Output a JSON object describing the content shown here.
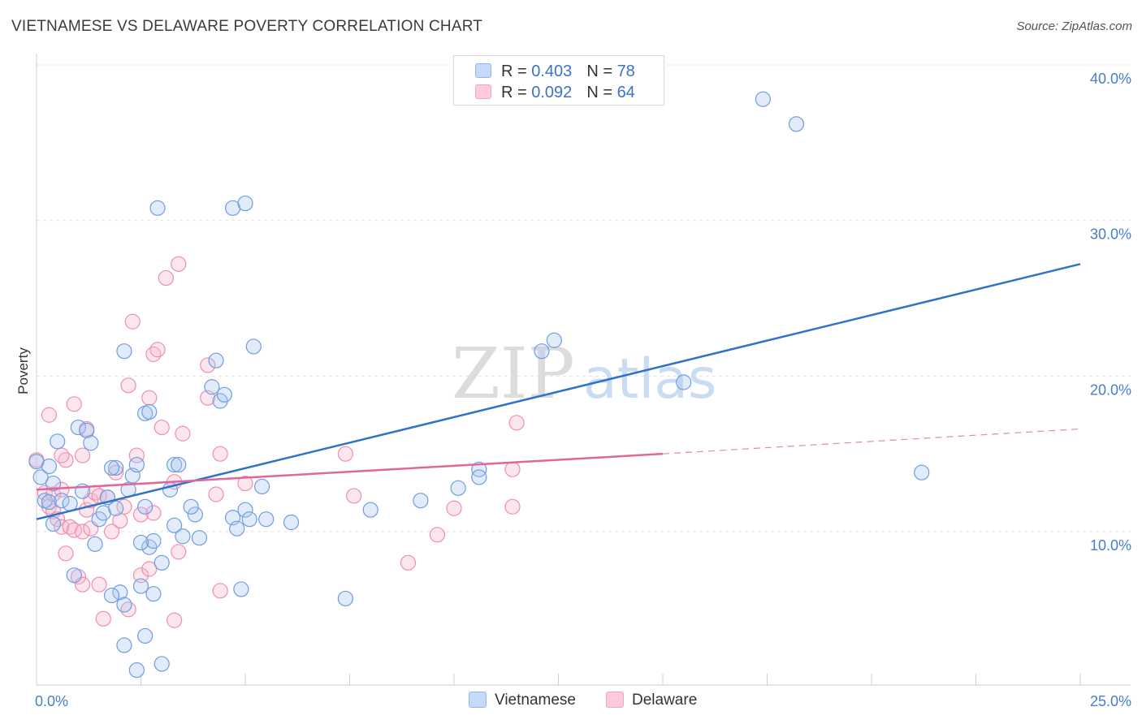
{
  "title": "VIETNAMESE VS DELAWARE POVERTY CORRELATION CHART",
  "source": "Source: ZipAtlas.com",
  "watermark": {
    "zip": "ZIP",
    "atlas": "atlas"
  },
  "legend": {
    "rows": [
      {
        "r_label": "R = ",
        "r_value": "0.403",
        "n_label": "N = ",
        "n_value": "78"
      },
      {
        "r_label": "R = ",
        "r_value": "0.092",
        "n_label": "N = ",
        "n_value": "64"
      }
    ]
  },
  "chart_data": {
    "type": "scatter",
    "title": "VIETNAMESE VS DELAWARE POVERTY CORRELATION CHART",
    "xlabel": "",
    "ylabel": "Poverty",
    "xlim": [
      0,
      25
    ],
    "ylim": [
      0,
      40.5
    ],
    "x_tick_labels": [
      "0.0%",
      "25.0%"
    ],
    "y_ticks": [
      10,
      20,
      30,
      40
    ],
    "y_tick_labels": [
      "10.0%",
      "20.0%",
      "30.0%",
      "40.0%"
    ],
    "grid": true,
    "legend_position": "top-center",
    "series": [
      {
        "name": "Vietnamese",
        "color": "#8fb5ea",
        "line_color": "#2f72cc",
        "r": 0.403,
        "n": 78,
        "trend": {
          "x0": 0,
          "y0": 10.8,
          "x1": 25,
          "y1": 27.2
        },
        "points": [
          [
            0.0,
            14.5
          ],
          [
            0.1,
            13.5
          ],
          [
            0.3,
            14.2
          ],
          [
            0.2,
            12.0
          ],
          [
            0.4,
            13.1
          ],
          [
            0.3,
            11.9
          ],
          [
            0.4,
            10.5
          ],
          [
            0.6,
            12.0
          ],
          [
            0.5,
            15.8
          ],
          [
            0.8,
            11.8
          ],
          [
            1.0,
            16.7
          ],
          [
            1.2,
            16.5
          ],
          [
            1.3,
            15.7
          ],
          [
            1.1,
            12.6
          ],
          [
            0.9,
            7.2
          ],
          [
            1.4,
            9.2
          ],
          [
            1.5,
            10.8
          ],
          [
            1.6,
            11.2
          ],
          [
            1.7,
            12.2
          ],
          [
            1.9,
            14.1
          ],
          [
            1.8,
            14.1
          ],
          [
            2.1,
            21.6
          ],
          [
            2.2,
            12.7
          ],
          [
            2.3,
            13.6
          ],
          [
            2.4,
            14.3
          ],
          [
            2.6,
            17.6
          ],
          [
            2.7,
            17.7
          ],
          [
            2.6,
            11.6
          ],
          [
            2.7,
            9.0
          ],
          [
            2.8,
            9.4
          ],
          [
            3.0,
            8.0
          ],
          [
            2.8,
            6.0
          ],
          [
            2.0,
            6.1
          ],
          [
            2.1,
            5.3
          ],
          [
            2.5,
            6.5
          ],
          [
            2.6,
            3.3
          ],
          [
            3.2,
            12.7
          ],
          [
            3.3,
            14.3
          ],
          [
            3.4,
            14.3
          ],
          [
            3.5,
            9.7
          ],
          [
            3.3,
            10.4
          ],
          [
            3.8,
            11.1
          ],
          [
            3.9,
            9.6
          ],
          [
            3.7,
            11.6
          ],
          [
            4.2,
            19.3
          ],
          [
            4.3,
            21.0
          ],
          [
            4.4,
            18.4
          ],
          [
            4.5,
            18.8
          ],
          [
            4.7,
            10.9
          ],
          [
            5.2,
            21.9
          ],
          [
            5.0,
            11.4
          ],
          [
            5.1,
            10.8
          ],
          [
            5.4,
            12.9
          ],
          [
            5.5,
            10.8
          ],
          [
            4.9,
            6.3
          ],
          [
            1.8,
            5.9
          ],
          [
            2.1,
            2.7
          ],
          [
            3.0,
            1.5
          ],
          [
            4.8,
            10.2
          ],
          [
            2.4,
            1.1
          ],
          [
            2.9,
            30.8
          ],
          [
            4.7,
            30.8
          ],
          [
            5.0,
            31.1
          ],
          [
            7.4,
            5.7
          ],
          [
            8.0,
            11.4
          ],
          [
            9.2,
            12.0
          ],
          [
            10.1,
            12.8
          ],
          [
            10.6,
            14.0
          ],
          [
            10.6,
            13.5
          ],
          [
            12.1,
            21.6
          ],
          [
            12.4,
            22.3
          ],
          [
            15.5,
            19.6
          ],
          [
            17.4,
            37.8
          ],
          [
            18.2,
            36.2
          ],
          [
            21.2,
            13.8
          ],
          [
            1.9,
            11.5
          ],
          [
            2.5,
            9.3
          ],
          [
            6.1,
            10.6
          ]
        ]
      },
      {
        "name": "Delaware",
        "color": "#f3a6c0",
        "line_color": "#e0679a",
        "r": 0.092,
        "n": 64,
        "trend": {
          "x0": 0,
          "y0": 12.7,
          "x1": 15,
          "y1": 15.0
        },
        "trend_dashed": {
          "x0": 15,
          "y0": 15.0,
          "x1": 25,
          "y1": 16.6
        },
        "points": [
          [
            0.0,
            14.6
          ],
          [
            0.2,
            12.5
          ],
          [
            0.3,
            11.6
          ],
          [
            0.4,
            12.4
          ],
          [
            0.3,
            17.5
          ],
          [
            0.4,
            11.3
          ],
          [
            0.5,
            10.8
          ],
          [
            0.6,
            12.7
          ],
          [
            0.6,
            10.3
          ],
          [
            0.7,
            8.6
          ],
          [
            0.7,
            14.6
          ],
          [
            0.8,
            10.3
          ],
          [
            0.9,
            18.2
          ],
          [
            0.9,
            10.1
          ],
          [
            1.0,
            7.1
          ],
          [
            1.1,
            6.6
          ],
          [
            1.1,
            10.0
          ],
          [
            1.2,
            11.4
          ],
          [
            1.3,
            10.2
          ],
          [
            1.3,
            12.0
          ],
          [
            1.4,
            12.5
          ],
          [
            1.5,
            12.3
          ],
          [
            1.5,
            6.6
          ],
          [
            1.6,
            4.4
          ],
          [
            1.7,
            12.2
          ],
          [
            1.8,
            10.0
          ],
          [
            2.0,
            10.7
          ],
          [
            2.1,
            11.6
          ],
          [
            2.2,
            19.4
          ],
          [
            2.3,
            23.5
          ],
          [
            2.4,
            14.9
          ],
          [
            2.5,
            11.1
          ],
          [
            2.5,
            7.2
          ],
          [
            2.7,
            18.6
          ],
          [
            2.8,
            21.4
          ],
          [
            2.9,
            21.7
          ],
          [
            2.7,
            7.6
          ],
          [
            2.8,
            11.2
          ],
          [
            3.0,
            16.7
          ],
          [
            3.1,
            26.3
          ],
          [
            3.3,
            13.2
          ],
          [
            3.4,
            27.2
          ],
          [
            3.4,
            8.7
          ],
          [
            3.5,
            16.3
          ],
          [
            3.3,
            4.3
          ],
          [
            4.1,
            20.7
          ],
          [
            4.1,
            18.6
          ],
          [
            4.4,
            15.0
          ],
          [
            4.3,
            12.4
          ],
          [
            4.4,
            6.2
          ],
          [
            1.9,
            13.8
          ],
          [
            2.2,
            5.0
          ],
          [
            1.2,
            16.6
          ],
          [
            0.6,
            14.9
          ],
          [
            1.1,
            14.9
          ],
          [
            5.0,
            13.1
          ],
          [
            7.4,
            15.0
          ],
          [
            7.6,
            12.3
          ],
          [
            8.9,
            8.0
          ],
          [
            9.6,
            9.8
          ],
          [
            10.0,
            11.5
          ],
          [
            11.4,
            11.6
          ],
          [
            11.4,
            14.0
          ],
          [
            11.5,
            17.0
          ]
        ]
      }
    ]
  }
}
